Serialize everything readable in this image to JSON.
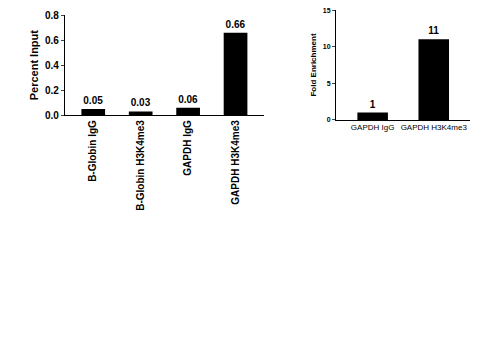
{
  "chart_data": [
    {
      "type": "bar",
      "y_label": "Percent Input",
      "categories": [
        "B-Globin IgG",
        "B-Globin H3K4me3",
        "GAPDH IgG",
        "GAPDH H3K4me3"
      ],
      "values": [
        0.05,
        0.03,
        0.06,
        0.66
      ],
      "color": "#000000",
      "data_labels": true,
      "grid": false,
      "ylim": [
        0,
        0.8
      ],
      "yticks": [
        {
          "value": 0,
          "label": "0.0"
        },
        {
          "value": 0.2,
          "label": "0.2"
        },
        {
          "value": 0.4,
          "label": "0.4"
        },
        {
          "value": 0.6,
          "label": "0.6"
        },
        {
          "value": 0.8,
          "label": "0.8"
        }
      ]
    },
    {
      "type": "bar",
      "y_label": "Fold Enrichment",
      "categories": [
        "GAPDH IgG",
        "GAPDH H3K4me3"
      ],
      "values": [
        1,
        11
      ],
      "color": "#000000",
      "data_labels": true,
      "grid": false,
      "ylim": [
        0,
        15
      ],
      "yticks": [
        0,
        5,
        10,
        15
      ]
    }
  ]
}
